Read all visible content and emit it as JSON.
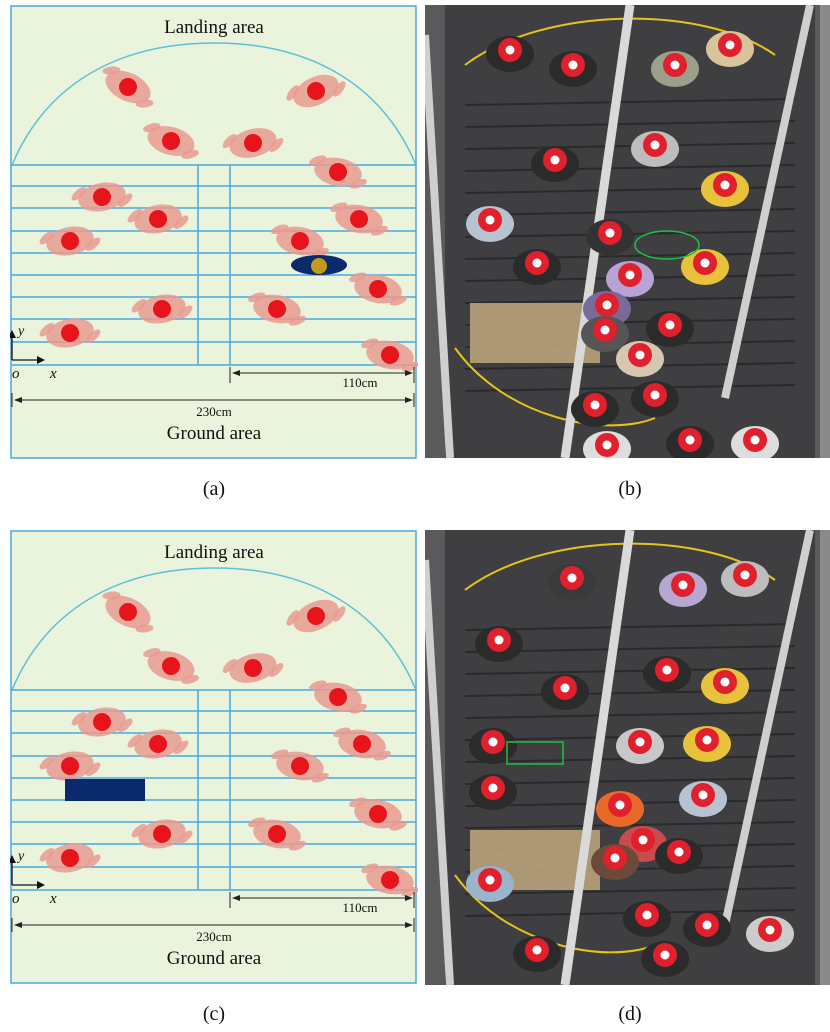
{
  "diagram_a": {
    "top_label": "Landing area",
    "bottom_label": "Ground area",
    "dim_right": "110cm",
    "dim_total": "230cm",
    "axis_y": "y",
    "axis_x": "x",
    "axis_origin": "o",
    "obstacle": "ellipse"
  },
  "diagram_c": {
    "top_label": "Landing area",
    "bottom_label": "Ground area",
    "dim_right": "110cm",
    "dim_total": "230cm",
    "axis_y": "y",
    "axis_x": "x",
    "axis_origin": "o",
    "obstacle": "rectangle"
  },
  "captions": {
    "a": "(a)",
    "b": "(b)",
    "c": "(c)",
    "d": "(d)"
  },
  "colors": {
    "background": "#eaf3dc",
    "lines": "#48a9e0",
    "dome": "#5ec0d6",
    "person_body": "#e89a90",
    "person_head": "#e8141c",
    "obstacle_dark": "#0b2a6b",
    "obstacle_core": "#c49a1a",
    "dim_lines": "#222222"
  }
}
